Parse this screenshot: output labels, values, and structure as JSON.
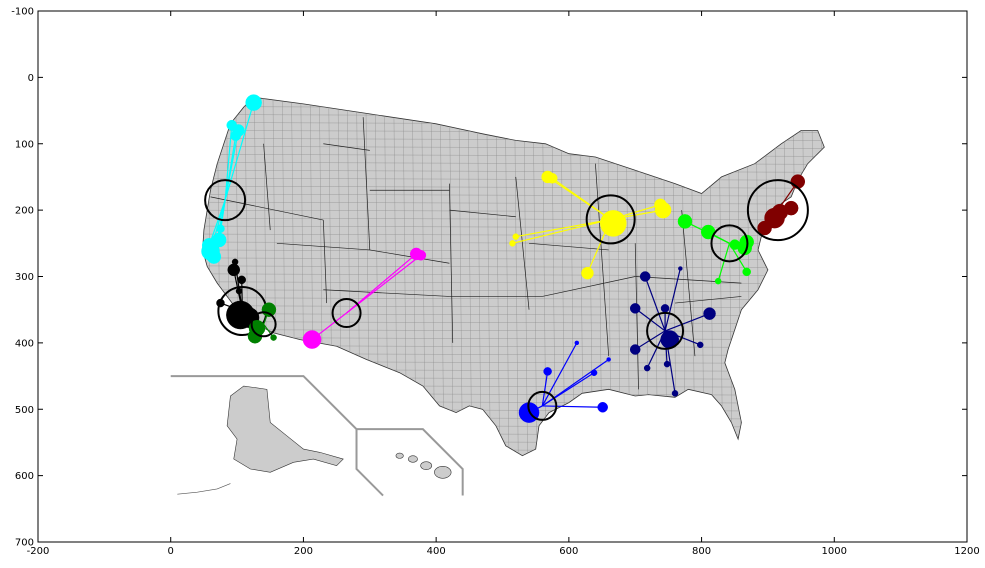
{
  "chart_data": {
    "type": "scatter",
    "title": "",
    "xlabel": "",
    "ylabel": "",
    "xlim": [
      -200,
      1200
    ],
    "ylim": [
      700,
      -100
    ],
    "y_inverted": true,
    "xticks": [
      -200,
      0,
      200,
      400,
      600,
      800,
      1000,
      1200
    ],
    "yticks": [
      -100,
      0,
      100,
      200,
      300,
      400,
      500,
      600,
      700
    ],
    "grid": false,
    "legend": "none",
    "background_map": "US counties choropleth (light gray) with Alaska and Hawaii insets",
    "map_fill": "#cccccc",
    "inset_line_color": "#999999",
    "clusters": [
      {
        "color": "#00ffff",
        "center": [
          82,
          185
        ],
        "center_radius": 20,
        "points": [
          {
            "x": 125,
            "y": 38,
            "r": 8
          },
          {
            "x": 92,
            "y": 72,
            "r": 5
          },
          {
            "x": 102,
            "y": 80,
            "r": 6
          },
          {
            "x": 98,
            "y": 88,
            "r": 5
          },
          {
            "x": 75,
            "y": 228,
            "r": 4
          },
          {
            "x": 73,
            "y": 245,
            "r": 7
          },
          {
            "x": 58,
            "y": 253,
            "r": 7
          },
          {
            "x": 60,
            "y": 262,
            "r": 9
          },
          {
            "x": 65,
            "y": 270,
            "r": 7
          }
        ]
      },
      {
        "color": "#000000",
        "center": [
          108,
          352
        ],
        "center_radius": 24,
        "points": [
          {
            "x": 97,
            "y": 278,
            "r": 3
          },
          {
            "x": 95,
            "y": 290,
            "r": 6
          },
          {
            "x": 107,
            "y": 305,
            "r": 4
          },
          {
            "x": 103,
            "y": 322,
            "r": 3
          },
          {
            "x": 75,
            "y": 340,
            "r": 4
          },
          {
            "x": 105,
            "y": 358,
            "r": 14
          },
          {
            "x": 118,
            "y": 362,
            "r": 10
          }
        ]
      },
      {
        "color": "#008000",
        "center": [
          140,
          372
        ],
        "center_radius": 12,
        "points": [
          {
            "x": 148,
            "y": 350,
            "r": 7
          },
          {
            "x": 130,
            "y": 378,
            "r": 8
          },
          {
            "x": 127,
            "y": 390,
            "r": 7
          },
          {
            "x": 155,
            "y": 392,
            "r": 3
          }
        ]
      },
      {
        "color": "#ff00ff",
        "center": [
          265,
          355
        ],
        "center_radius": 14,
        "points": [
          {
            "x": 213,
            "y": 395,
            "r": 9
          },
          {
            "x": 370,
            "y": 266,
            "r": 6
          },
          {
            "x": 377,
            "y": 268,
            "r": 5
          }
        ]
      },
      {
        "color": "#ffff00",
        "center": [
          663,
          214
        ],
        "center_radius": 24,
        "points": [
          {
            "x": 568,
            "y": 150,
            "r": 6
          },
          {
            "x": 575,
            "y": 152,
            "r": 5
          },
          {
            "x": 520,
            "y": 240,
            "r": 3
          },
          {
            "x": 515,
            "y": 250,
            "r": 3
          },
          {
            "x": 628,
            "y": 295,
            "r": 6
          },
          {
            "x": 667,
            "y": 220,
            "r": 13
          },
          {
            "x": 742,
            "y": 200,
            "r": 8
          },
          {
            "x": 738,
            "y": 192,
            "r": 6
          }
        ]
      },
      {
        "color": "#00ff00",
        "center": [
          842,
          250
        ],
        "center_radius": 18,
        "points": [
          {
            "x": 775,
            "y": 217,
            "r": 7
          },
          {
            "x": 810,
            "y": 233,
            "r": 7
          },
          {
            "x": 868,
            "y": 248,
            "r": 7
          },
          {
            "x": 865,
            "y": 257,
            "r": 7
          },
          {
            "x": 850,
            "y": 252,
            "r": 5
          },
          {
            "x": 825,
            "y": 307,
            "r": 3
          },
          {
            "x": 868,
            "y": 293,
            "r": 4
          }
        ]
      },
      {
        "color": "#800000",
        "center": [
          915,
          200
        ],
        "center_radius": 30,
        "points": [
          {
            "x": 945,
            "y": 157,
            "r": 7
          },
          {
            "x": 935,
            "y": 197,
            "r": 7
          },
          {
            "x": 910,
            "y": 212,
            "r": 10
          },
          {
            "x": 918,
            "y": 203,
            "r": 8
          },
          {
            "x": 895,
            "y": 227,
            "r": 7
          }
        ]
      },
      {
        "color": "#000080",
        "center": [
          745,
          382
        ],
        "center_radius": 18,
        "points": [
          {
            "x": 715,
            "y": 300,
            "r": 5
          },
          {
            "x": 768,
            "y": 288,
            "r": 2
          },
          {
            "x": 700,
            "y": 348,
            "r": 5
          },
          {
            "x": 812,
            "y": 356,
            "r": 6
          },
          {
            "x": 752,
            "y": 395,
            "r": 9
          },
          {
            "x": 700,
            "y": 410,
            "r": 5
          },
          {
            "x": 718,
            "y": 438,
            "r": 3
          },
          {
            "x": 748,
            "y": 432,
            "r": 3
          },
          {
            "x": 760,
            "y": 476,
            "r": 3
          },
          {
            "x": 798,
            "y": 403,
            "r": 3
          },
          {
            "x": 745,
            "y": 348,
            "r": 4
          }
        ]
      },
      {
        "color": "#0000ff",
        "center": [
          560,
          495
        ],
        "center_radius": 14,
        "points": [
          {
            "x": 540,
            "y": 505,
            "r": 10
          },
          {
            "x": 568,
            "y": 443,
            "r": 4
          },
          {
            "x": 651,
            "y": 497,
            "r": 5
          },
          {
            "x": 638,
            "y": 445,
            "r": 3
          },
          {
            "x": 660,
            "y": 425,
            "r": 2
          },
          {
            "x": 612,
            "y": 400,
            "r": 2
          }
        ]
      }
    ]
  }
}
